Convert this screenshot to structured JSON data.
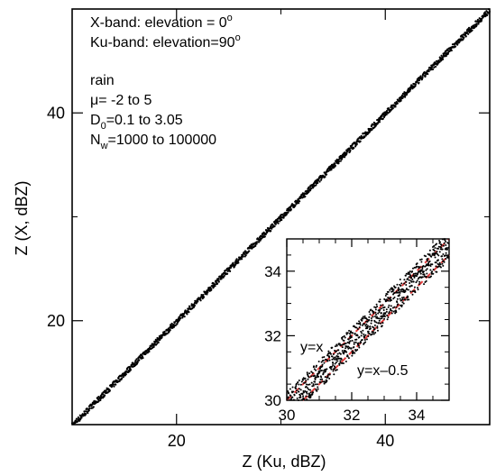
{
  "chart_data": [
    {
      "type": "scatter",
      "title": "",
      "xlabel": "Z (Ku, dBZ)",
      "ylabel": "Z (X, dBZ)",
      "xlim": [
        10,
        50
      ],
      "ylim": [
        10,
        50
      ],
      "xticks": [
        20,
        40
      ],
      "yticks": [
        20,
        40
      ],
      "grid": false,
      "annotations": {
        "line1": {
          "text": "X-band: elevation = 0",
          "sup": "o"
        },
        "line2": {
          "text": "Ku-band: elevation=90",
          "sup": "o"
        },
        "line3": {
          "text": "rain"
        },
        "line4": {
          "text": "μ= -2 to 5"
        },
        "line5": {
          "main": "D",
          "sub": "0",
          "rest": "=0.1 to 3.05"
        },
        "line6": {
          "main": "N",
          "sub": "w",
          "rest": "=1000 to 100000"
        }
      },
      "series": [
        {
          "points": [
            [
              10,
              9.9
            ],
            [
              15,
              14.8
            ],
            [
              20,
              19.8
            ],
            [
              25,
              24.8
            ],
            [
              30,
              29.8
            ],
            [
              35,
              34.8
            ],
            [
              40,
              39.8
            ],
            [
              45,
              44.8
            ],
            [
              50,
              49.8
            ]
          ]
        }
      ]
    },
    {
      "type": "scatter",
      "title": "",
      "xlabel": "",
      "ylabel": "",
      "xlim": [
        30,
        35
      ],
      "ylim": [
        30,
        35
      ],
      "xticks": [
        30,
        32,
        34
      ],
      "yticks": [
        30,
        32,
        34
      ],
      "grid": false,
      "reference_lines": [
        {
          "label": "y=x",
          "offset": 0,
          "color": "#e23b3b"
        },
        {
          "label": "y=x–0.5",
          "offset": -0.5,
          "color": "#e23b3b"
        }
      ],
      "series": [
        {
          "points": [
            [
              30,
              29.8
            ],
            [
              31,
              30.8
            ],
            [
              32,
              31.8
            ],
            [
              33,
              32.8
            ],
            [
              34,
              33.8
            ],
            [
              35,
              34.8
            ]
          ]
        }
      ]
    }
  ]
}
